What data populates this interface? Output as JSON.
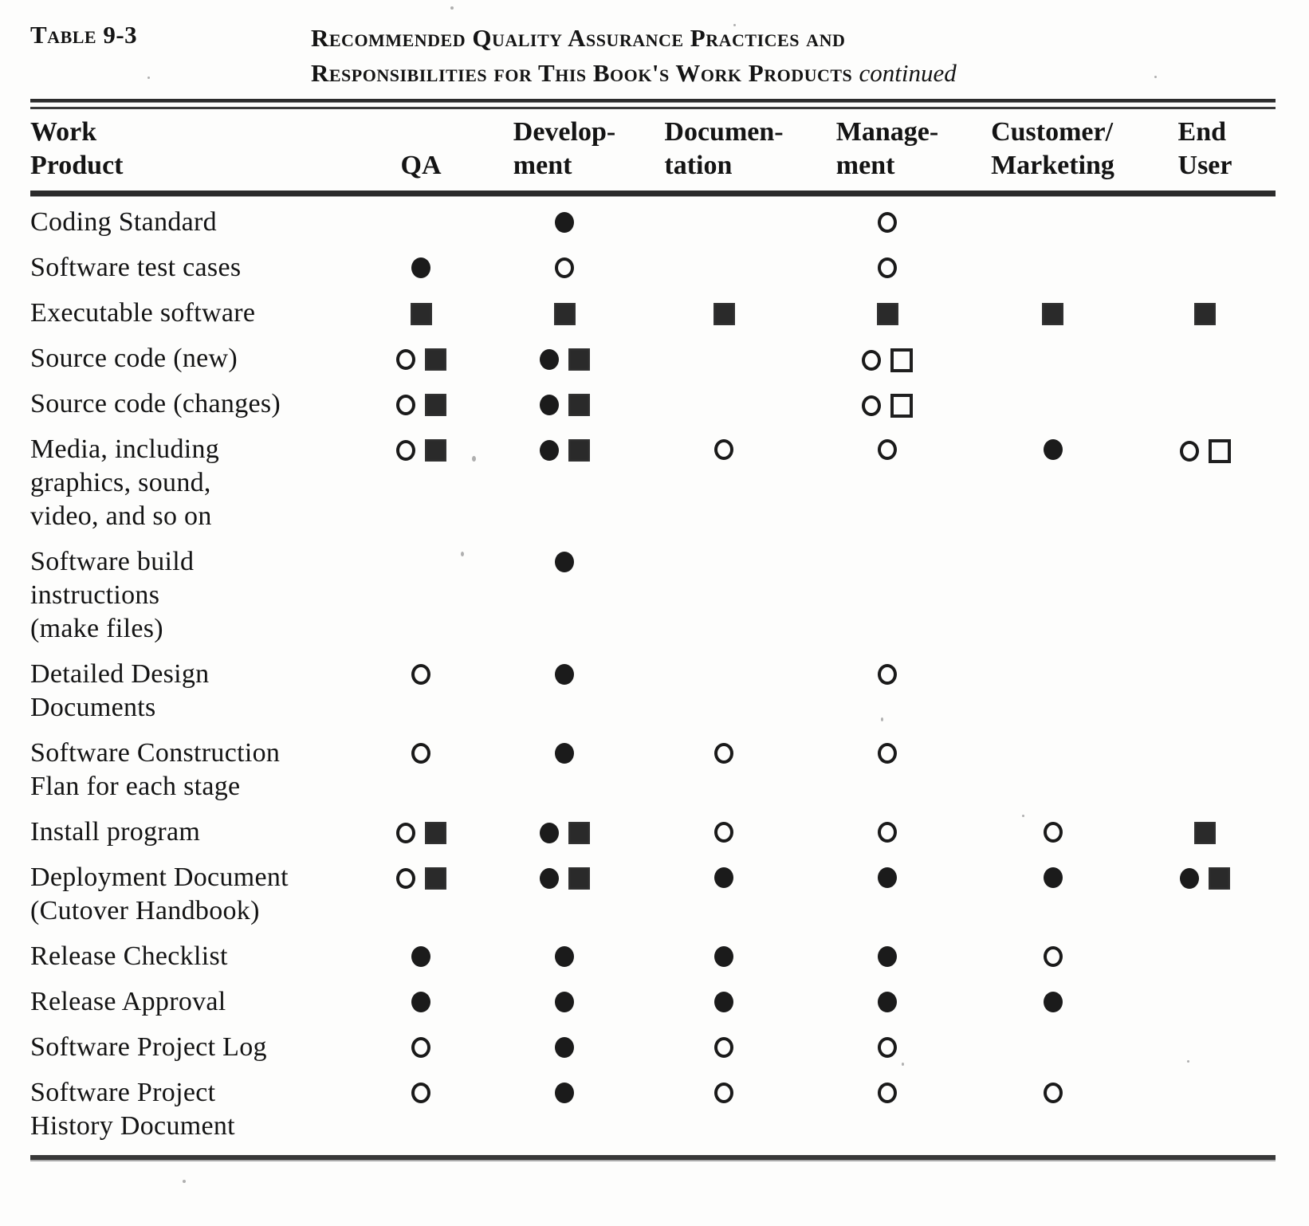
{
  "page": {
    "table_number": "Table 9-3",
    "title": {
      "line1": "Recommended Quality Assurance Practices and",
      "line2": "Responsibilities for This Book's Work Products",
      "continued": "continued"
    },
    "columns": [
      {
        "label": "Work\nProduct"
      },
      {
        "label": "QA"
      },
      {
        "label": "Develop-\nment"
      },
      {
        "label": "Documen-\ntation"
      },
      {
        "label": "Manage-\nment"
      },
      {
        "label": "Customer/\nMarketing"
      },
      {
        "label": "End\nUser"
      }
    ],
    "symbol_names": {
      "oc": "open-circle",
      "fc": "filled-circle",
      "fs": "filled-square",
      "os": "open-square"
    },
    "rows": [
      {
        "label": "Coding Standard",
        "cells": [
          [],
          [
            "fc"
          ],
          [],
          [
            "oc"
          ],
          [],
          []
        ]
      },
      {
        "label": "Software test cases",
        "cells": [
          [
            "fc"
          ],
          [
            "oc"
          ],
          [],
          [
            "oc"
          ],
          [],
          []
        ]
      },
      {
        "label": "Executable software",
        "cells": [
          [
            "fs"
          ],
          [
            "fs"
          ],
          [
            "fs"
          ],
          [
            "fs"
          ],
          [
            "fs"
          ],
          [
            "fs"
          ]
        ]
      },
      {
        "label": "Source code (new)",
        "cells": [
          [
            "oc",
            "fs"
          ],
          [
            "fc",
            "fs"
          ],
          [],
          [
            "oc",
            "os"
          ],
          [],
          []
        ]
      },
      {
        "label": "Source code (changes)",
        "cells": [
          [
            "oc",
            "fs"
          ],
          [
            "fc",
            "fs"
          ],
          [],
          [
            "oc",
            "os"
          ],
          [],
          []
        ]
      },
      {
        "label": "Media, including\ngraphics, sound,\nvideo, and so on",
        "cells": [
          [
            "oc",
            "fs"
          ],
          [
            "fc",
            "fs"
          ],
          [
            "oc"
          ],
          [
            "oc"
          ],
          [
            "fc"
          ],
          [
            "oc",
            "os"
          ]
        ]
      },
      {
        "label": "Software  build\ninstructions\n(make files)",
        "cells": [
          [],
          [
            "fc"
          ],
          [],
          [],
          [],
          []
        ]
      },
      {
        "label": "Detailed Design\nDocuments",
        "cells": [
          [
            "oc"
          ],
          [
            "fc"
          ],
          [],
          [
            "oc"
          ],
          [],
          []
        ]
      },
      {
        "label": "Software  Construction\nFlan for each stage",
        "cells": [
          [
            "oc"
          ],
          [
            "fc"
          ],
          [
            "oc"
          ],
          [
            "oc"
          ],
          [],
          []
        ]
      },
      {
        "label": "Install program",
        "cells": [
          [
            "oc",
            "fs"
          ],
          [
            "fc",
            "fs"
          ],
          [
            "oc"
          ],
          [
            "oc"
          ],
          [
            "oc"
          ],
          [
            "fs"
          ]
        ]
      },
      {
        "label": "Deployment Document\n(Cutover  Handbook)",
        "cells": [
          [
            "oc",
            "fs"
          ],
          [
            "fc",
            "fs"
          ],
          [
            "fc"
          ],
          [
            "fc"
          ],
          [
            "fc"
          ],
          [
            "fc",
            "fs"
          ]
        ]
      },
      {
        "label": "Release  Checklist",
        "cells": [
          [
            "fc"
          ],
          [
            "fc"
          ],
          [
            "fc"
          ],
          [
            "fc"
          ],
          [
            "oc"
          ],
          []
        ]
      },
      {
        "label": "Release  Approval",
        "cells": [
          [
            "fc"
          ],
          [
            "fc"
          ],
          [
            "fc"
          ],
          [
            "fc"
          ],
          [
            "fc"
          ],
          []
        ]
      },
      {
        "label": "Software Project Log",
        "cells": [
          [
            "oc"
          ],
          [
            "fc"
          ],
          [
            "oc"
          ],
          [
            "oc"
          ],
          [],
          []
        ]
      },
      {
        "label": "Software Project\nHistory Document",
        "cells": [
          [
            "oc"
          ],
          [
            "fc"
          ],
          [
            "oc"
          ],
          [
            "oc"
          ],
          [
            "oc"
          ],
          []
        ]
      }
    ]
  }
}
